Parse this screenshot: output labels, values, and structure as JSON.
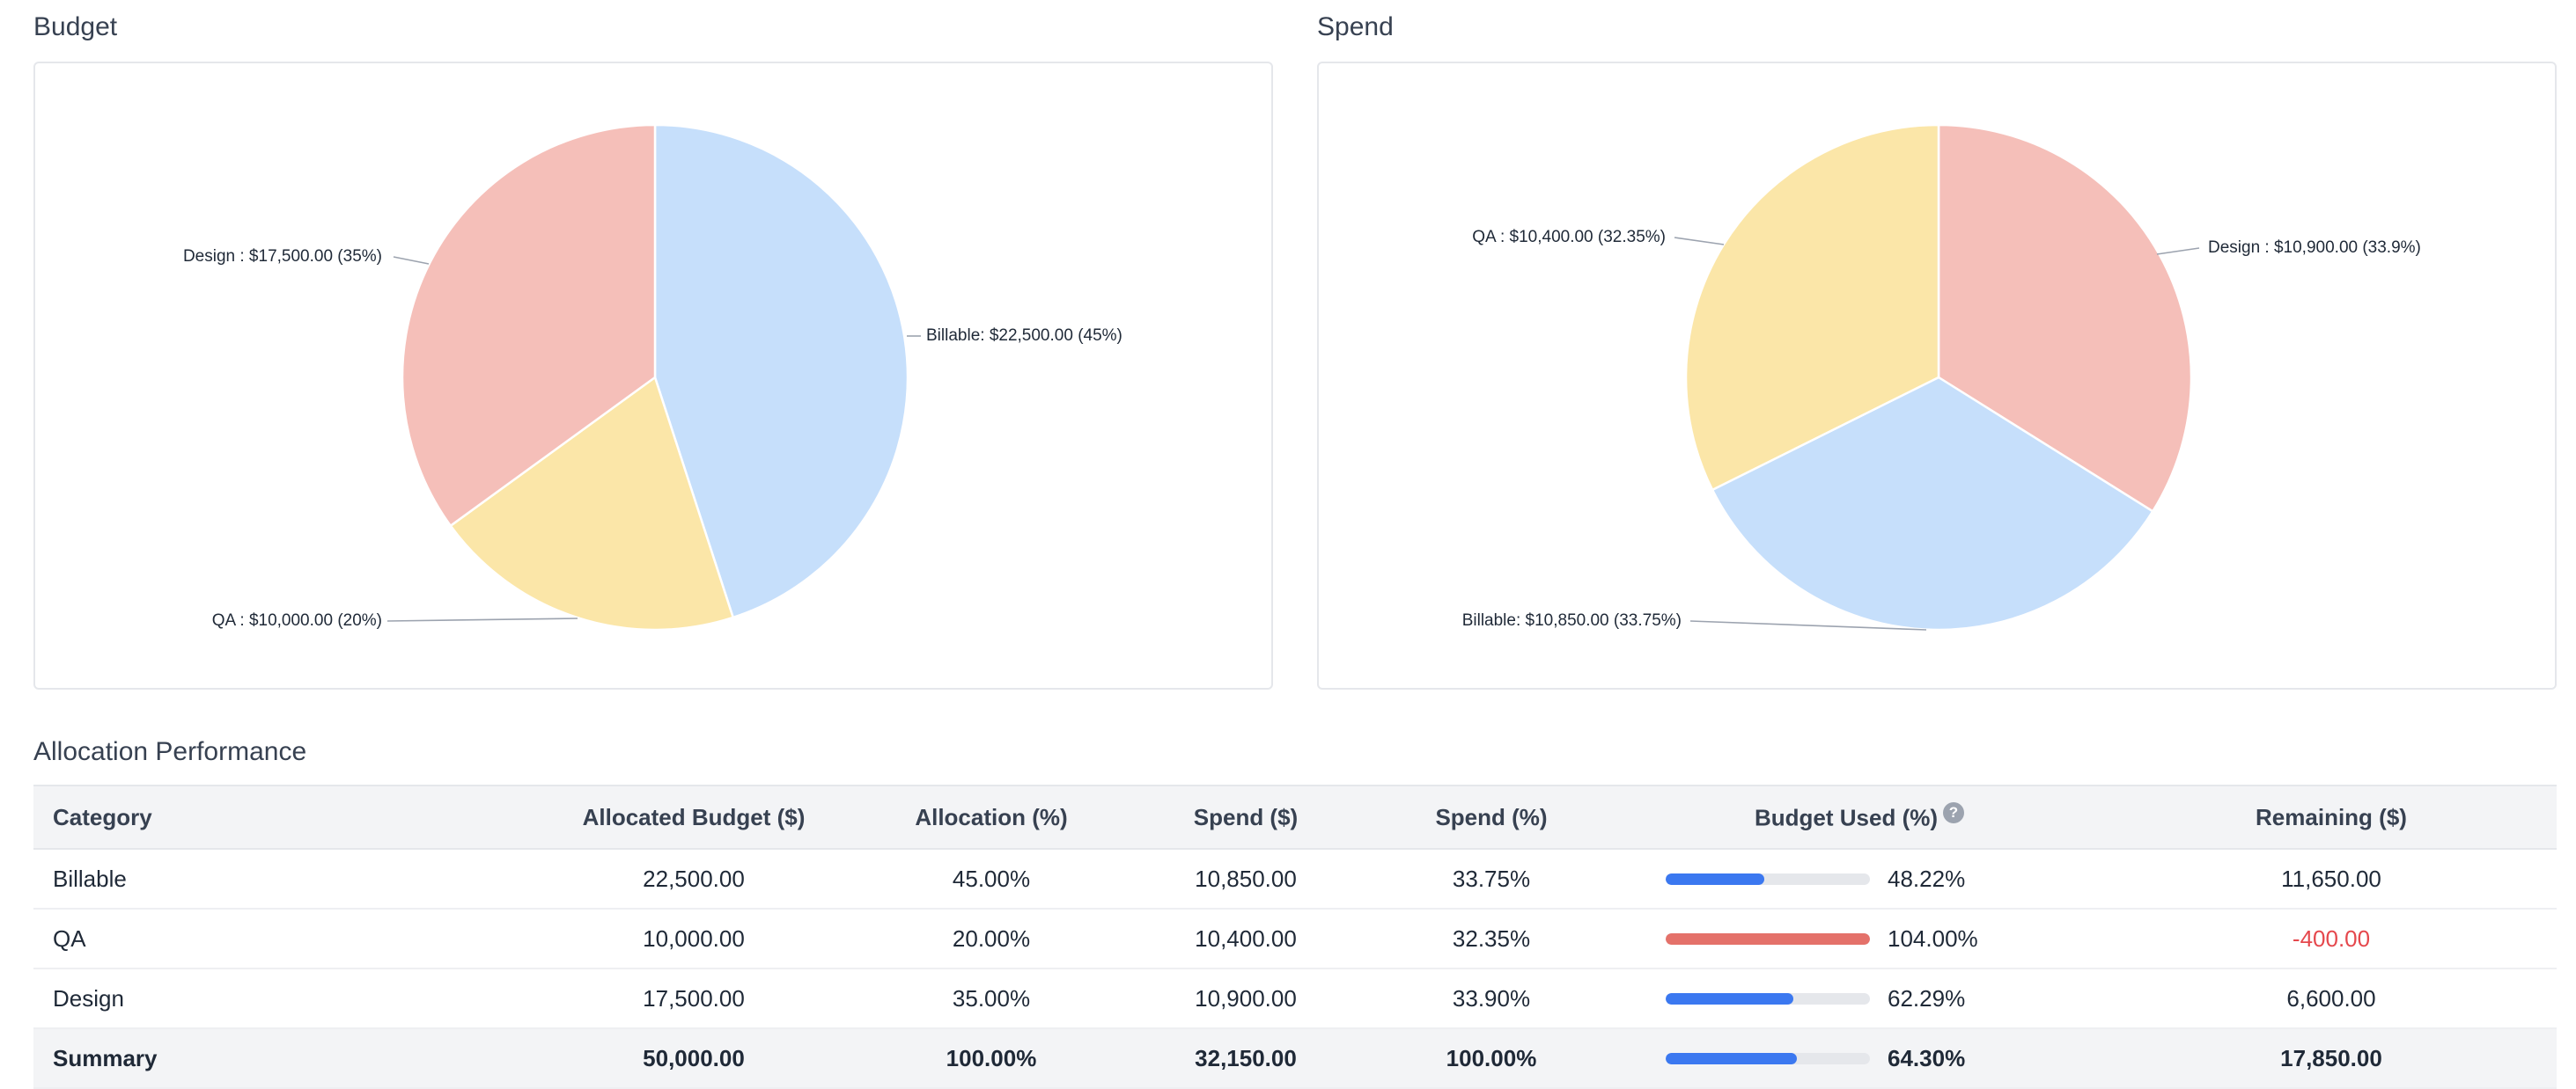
{
  "budget_title": "Budget",
  "spend_title": "Spend",
  "table_title": "Allocation Performance",
  "colors": {
    "blue": "#c6dffb",
    "pink": "#f5bfb9",
    "yellow": "#fbe6a8",
    "bar_blue": "#3b78f0",
    "bar_red": "#e4716a",
    "negative": "#e5484d"
  },
  "chart_data": [
    {
      "type": "pie",
      "title": "Budget",
      "slices": [
        {
          "name": "Billable",
          "value": 22500,
          "percent": 45,
          "label": "Billable: $22,500.00 (45%)",
          "color": "#c6dffb"
        },
        {
          "name": "QA",
          "value": 10000,
          "percent": 20,
          "label": "QA : $10,000.00 (20%)",
          "color": "#fbe6a8"
        },
        {
          "name": "Design",
          "value": 17500,
          "percent": 35,
          "label": "Design : $17,500.00 (35%)",
          "color": "#f5bfb9"
        }
      ]
    },
    {
      "type": "pie",
      "title": "Spend",
      "slices": [
        {
          "name": "Design",
          "value": 10900,
          "percent": 33.9,
          "label": "Design : $10,900.00 (33.9%)",
          "color": "#f5bfb9"
        },
        {
          "name": "Billable",
          "value": 10850,
          "percent": 33.75,
          "label": "Billable: $10,850.00 (33.75%)",
          "color": "#c6dffb"
        },
        {
          "name": "QA",
          "value": 10400,
          "percent": 32.35,
          "label": "QA : $10,400.00 (32.35%)",
          "color": "#fbe6a8"
        }
      ]
    }
  ],
  "table": {
    "headers": {
      "category": "Category",
      "allocated": "Allocated Budget ($)",
      "allocation_pct": "Allocation (%)",
      "spend": "Spend ($)",
      "spend_pct": "Spend (%)",
      "budget_used": "Budget Used (%)",
      "remaining": "Remaining ($)",
      "help": "?"
    },
    "rows": [
      {
        "category": "Billable",
        "allocated": "22,500.00",
        "allocation_pct": "45.00%",
        "spend": "10,850.00",
        "spend_pct": "33.75%",
        "used_label": "48.22%",
        "used": 48.22,
        "remaining": "11,650.00"
      },
      {
        "category": "QA",
        "allocated": "10,000.00",
        "allocation_pct": "20.00%",
        "spend": "10,400.00",
        "spend_pct": "32.35%",
        "used_label": "104.00%",
        "used": 104.0,
        "remaining": "-400.00"
      },
      {
        "category": "Design",
        "allocated": "17,500.00",
        "allocation_pct": "35.00%",
        "spend": "10,900.00",
        "spend_pct": "33.90%",
        "used_label": "62.29%",
        "used": 62.29,
        "remaining": "6,600.00"
      }
    ],
    "summary": {
      "category": "Summary",
      "allocated": "50,000.00",
      "allocation_pct": "100.00%",
      "spend": "32,150.00",
      "spend_pct": "100.00%",
      "used_label": "64.30%",
      "used": 64.3,
      "remaining": "17,850.00"
    }
  }
}
